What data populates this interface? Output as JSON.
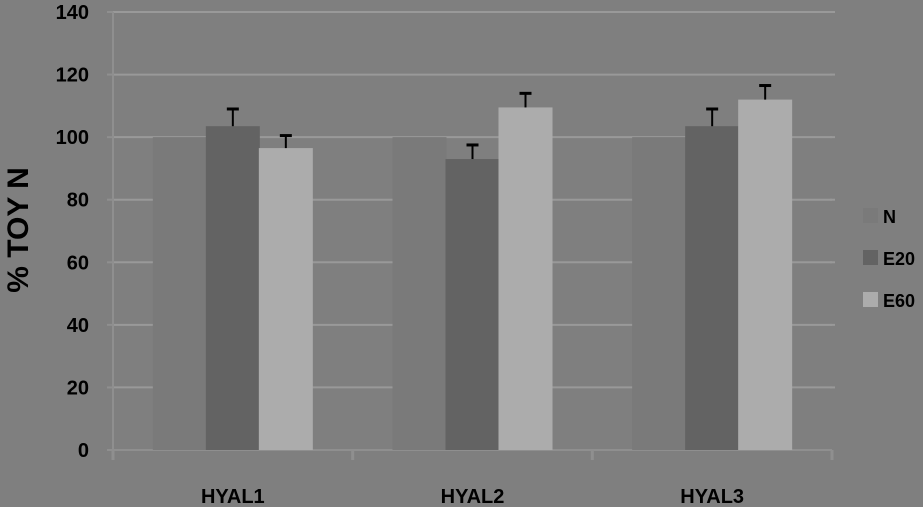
{
  "chart_data": {
    "type": "bar",
    "title": "",
    "xlabel": "",
    "ylabel": "% TOY N",
    "ylim": [
      0,
      140
    ],
    "yticks": [
      0,
      20,
      40,
      60,
      80,
      100,
      120,
      140
    ],
    "ytick_labels": [
      "0",
      "20",
      "40",
      "60",
      "80",
      "100",
      "120",
      "140"
    ],
    "grid": true,
    "legend_position": "right",
    "categories": [
      "HYAL1",
      "HYAL2",
      "HYAL3"
    ],
    "series": [
      {
        "name": "N",
        "values": [
          100,
          100,
          100
        ],
        "errors": [
          0,
          0,
          0
        ]
      },
      {
        "name": "E20",
        "values": [
          103.5,
          93,
          103.5
        ],
        "errors": [
          5.5,
          4.5,
          5.5
        ]
      },
      {
        "name": "E60",
        "values": [
          96.5,
          109.5,
          112
        ],
        "errors": [
          4,
          4.5,
          4.5
        ]
      }
    ]
  },
  "colors": {
    "background": "#7f7f7f",
    "gridline": "#999999",
    "axis": "#8f8f8f",
    "series": [
      "#7a7a7a",
      "#636363",
      "#acacac"
    ],
    "error_bar": "#000000"
  }
}
